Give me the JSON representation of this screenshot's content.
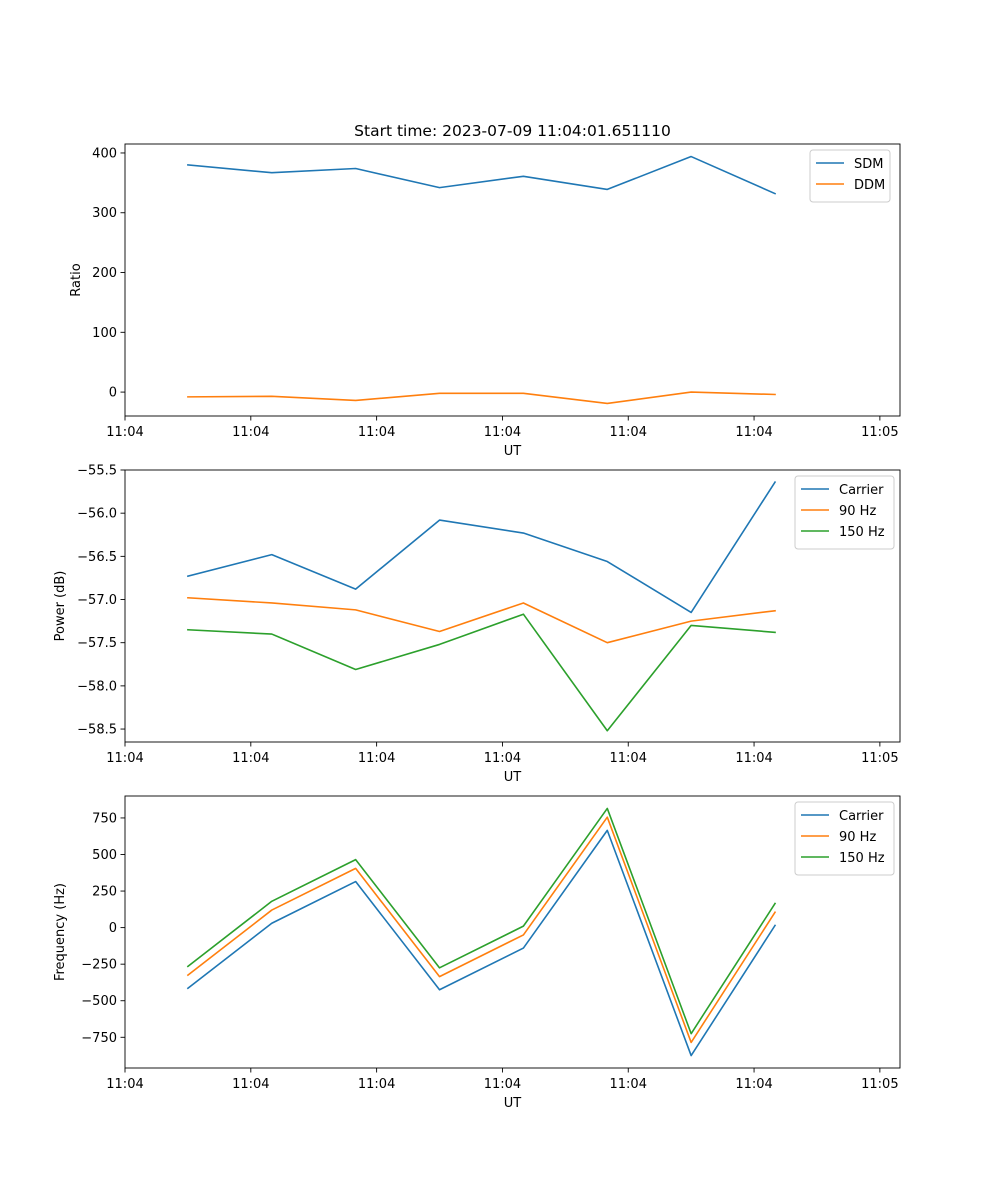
{
  "figure_title": "Start time: 2023-07-09 11:04:01.651110",
  "colors": {
    "blue": "#1f77b4",
    "orange": "#ff7f0e",
    "green": "#2ca02c"
  },
  "chart_data": [
    {
      "type": "line",
      "title": "Start time: 2023-07-09 11:04:01.651110",
      "xlabel": "UT",
      "ylabel": "Ratio",
      "xlim": [
        -0.75,
        8.49
      ],
      "ylim": [
        -40,
        415
      ],
      "x": [
        0,
        1,
        2,
        3,
        4,
        5,
        6,
        7
      ],
      "x_tick_positions": [
        -0.75,
        0.75,
        2.25,
        3.75,
        5.25,
        6.75,
        8.25
      ],
      "x_tick_labels": [
        "11:04",
        "11:04",
        "11:04",
        "11:04",
        "11:04",
        "11:04",
        "11:05"
      ],
      "y_ticks": [
        0,
        100,
        200,
        300,
        400
      ],
      "y_tick_labels": [
        "0",
        "100",
        "200",
        "300",
        "400"
      ],
      "legend_position": "upper right",
      "series": [
        {
          "name": "SDM",
          "color": "#1f77b4",
          "values": [
            380,
            367,
            374,
            342,
            361,
            339,
            394,
            332
          ]
        },
        {
          "name": "DDM",
          "color": "#ff7f0e",
          "values": [
            -8,
            -7,
            -14,
            -2,
            -2,
            -19,
            0,
            -4
          ]
        }
      ]
    },
    {
      "type": "line",
      "title": "",
      "xlabel": "UT",
      "ylabel": "Power (dB)",
      "xlim": [
        -0.75,
        8.49
      ],
      "ylim": [
        -58.65,
        -55.5
      ],
      "x": [
        0,
        1,
        2,
        3,
        4,
        5,
        6,
        7
      ],
      "x_tick_positions": [
        -0.75,
        0.75,
        2.25,
        3.75,
        5.25,
        6.75,
        8.25
      ],
      "x_tick_labels": [
        "11:04",
        "11:04",
        "11:04",
        "11:04",
        "11:04",
        "11:04",
        "11:05"
      ],
      "y_ticks": [
        -58.5,
        -58.0,
        -57.5,
        -57.0,
        -56.5,
        -56.0,
        -55.5
      ],
      "y_tick_labels": [
        "−58.5",
        "−58.0",
        "−57.5",
        "−57.0",
        "−56.5",
        "−56.0",
        "−55.5"
      ],
      "legend_position": "upper right",
      "series": [
        {
          "name": "Carrier",
          "color": "#1f77b4",
          "values": [
            -56.73,
            -56.48,
            -56.88,
            -56.08,
            -56.23,
            -56.56,
            -57.15,
            -55.64
          ]
        },
        {
          "name": "90 Hz",
          "color": "#ff7f0e",
          "values": [
            -56.98,
            -57.04,
            -57.12,
            -57.37,
            -57.04,
            -57.5,
            -57.25,
            -57.13
          ]
        },
        {
          "name": "150 Hz",
          "color": "#2ca02c",
          "values": [
            -57.35,
            -57.4,
            -57.81,
            -57.52,
            -57.17,
            -58.52,
            -57.3,
            -57.38
          ]
        }
      ]
    },
    {
      "type": "line",
      "title": "",
      "xlabel": "UT",
      "ylabel": "Frequency (Hz)",
      "xlim": [
        -0.75,
        8.49
      ],
      "ylim": [
        -960,
        900
      ],
      "x": [
        0,
        1,
        2,
        3,
        4,
        5,
        6,
        7
      ],
      "x_tick_positions": [
        -0.75,
        0.75,
        2.25,
        3.75,
        5.25,
        6.75,
        8.25
      ],
      "x_tick_labels": [
        "11:04",
        "11:04",
        "11:04",
        "11:04",
        "11:04",
        "11:04",
        "11:05"
      ],
      "y_ticks": [
        -750,
        -500,
        -250,
        0,
        250,
        500,
        750
      ],
      "y_tick_labels": [
        "−750",
        "−500",
        "−250",
        "0",
        "250",
        "500",
        "750"
      ],
      "legend_position": "upper right",
      "series": [
        {
          "name": "Carrier",
          "color": "#1f77b4",
          "values": [
            -415,
            30,
            315,
            -425,
            -140,
            665,
            -875,
            15
          ]
        },
        {
          "name": "90 Hz",
          "color": "#ff7f0e",
          "values": [
            -325,
            120,
            405,
            -335,
            -50,
            755,
            -785,
            105
          ]
        },
        {
          "name": "150 Hz",
          "color": "#2ca02c",
          "values": [
            -265,
            180,
            465,
            -275,
            10,
            815,
            -725,
            165
          ]
        }
      ]
    }
  ]
}
